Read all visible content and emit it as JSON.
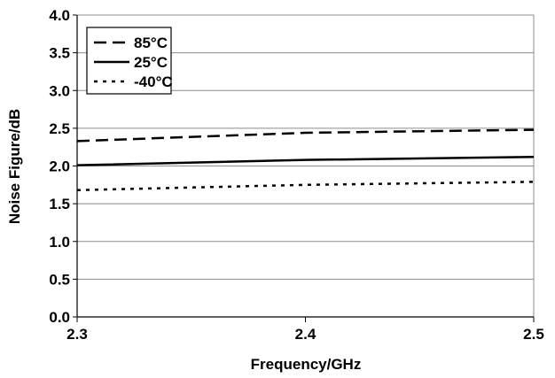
{
  "chart_data": {
    "type": "line",
    "title": "",
    "xlabel": "Frequency/GHz",
    "ylabel": "Noise Figure/dB",
    "xlim": [
      2.3,
      2.5
    ],
    "ylim": [
      0.0,
      4.0
    ],
    "x_ticks": [
      "2.3",
      "2.4",
      "2.5"
    ],
    "y_ticks": [
      "0.0",
      "0.5",
      "1.0",
      "1.5",
      "2.0",
      "2.5",
      "3.0",
      "3.5",
      "4.0"
    ],
    "grid": "horizontal",
    "legend_position": "top-left",
    "x": [
      2.3,
      2.4,
      2.5
    ],
    "series": [
      {
        "name": "85°C",
        "style": "dashed",
        "color": "#000000",
        "values": [
          2.33,
          2.44,
          2.48
        ]
      },
      {
        "name": "25°C",
        "style": "solid",
        "color": "#000000",
        "values": [
          2.01,
          2.08,
          2.12
        ]
      },
      {
        "name": "-40°C",
        "style": "dotted",
        "color": "#000000",
        "values": [
          1.68,
          1.75,
          1.79
        ]
      }
    ]
  }
}
